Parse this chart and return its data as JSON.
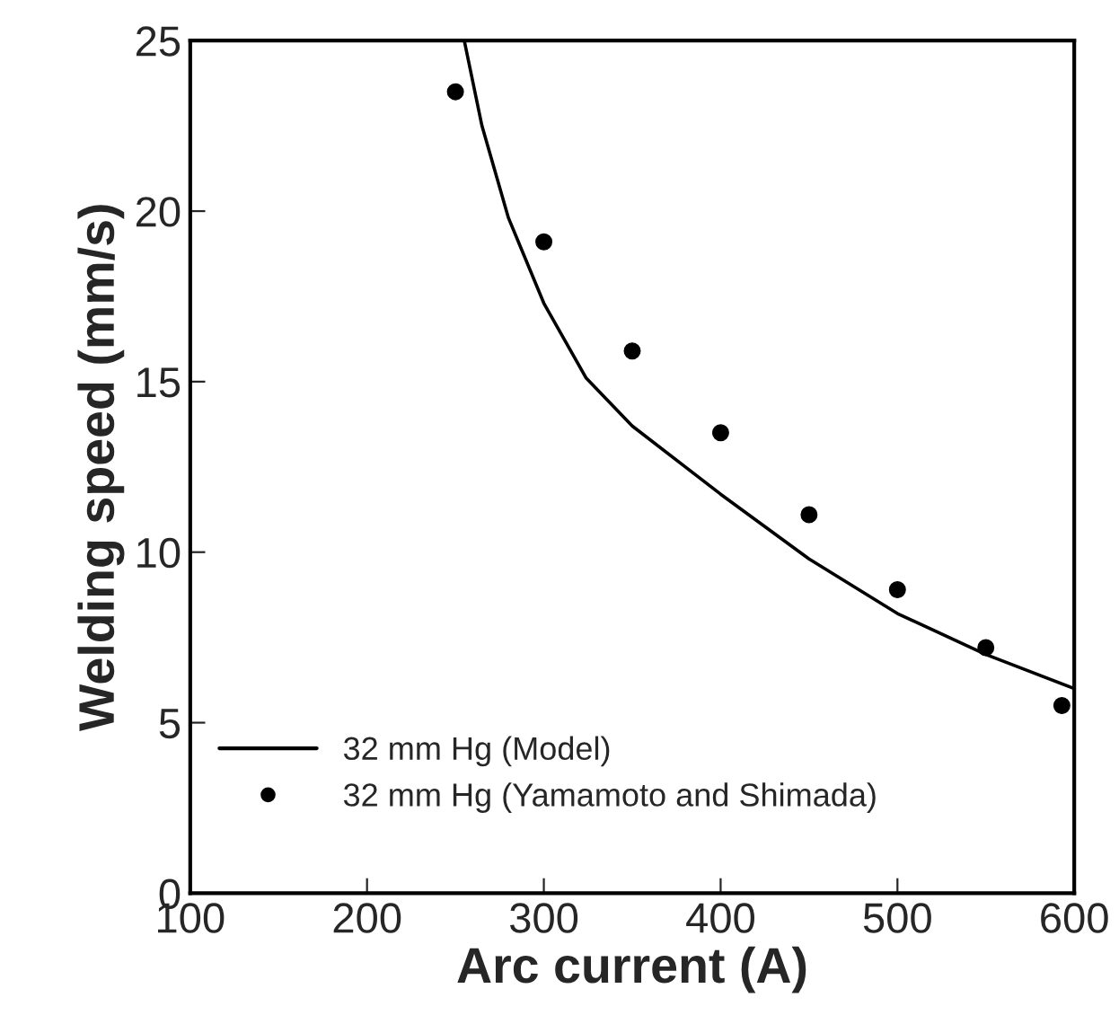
{
  "chart_data": {
    "type": "line",
    "xlabel": "Arc current (A)",
    "ylabel": "Welding speed (mm/s)",
    "xlim": [
      100,
      600
    ],
    "xticks": [
      100,
      200,
      300,
      400,
      500,
      600
    ],
    "ylim": [
      0,
      25
    ],
    "yticks": [
      0,
      5,
      10,
      15,
      20,
      25
    ],
    "grid": false,
    "legend": "bottom left",
    "series": [
      {
        "name": "32 mm Hg (Model)",
        "color": "#000000",
        "marker": "none",
        "line_style": "solid",
        "x": [
          255,
          265,
          280,
          300,
          324,
          350,
          400,
          450,
          500,
          550,
          600
        ],
        "values": [
          25,
          22.5,
          19.8,
          17.3,
          15.1,
          13.7,
          11.7,
          9.8,
          8.2,
          7.0,
          6.0
        ]
      },
      {
        "name": "32 mm Hg (Yamamoto and Shimada)",
        "type": "scatter",
        "color": "#000000",
        "marker": "circle",
        "x": [
          250,
          300,
          350,
          400,
          450,
          500,
          550,
          593
        ],
        "values": [
          23.5,
          19.1,
          15.9,
          13.5,
          11.1,
          8.9,
          7.2,
          5.5
        ]
      }
    ]
  }
}
